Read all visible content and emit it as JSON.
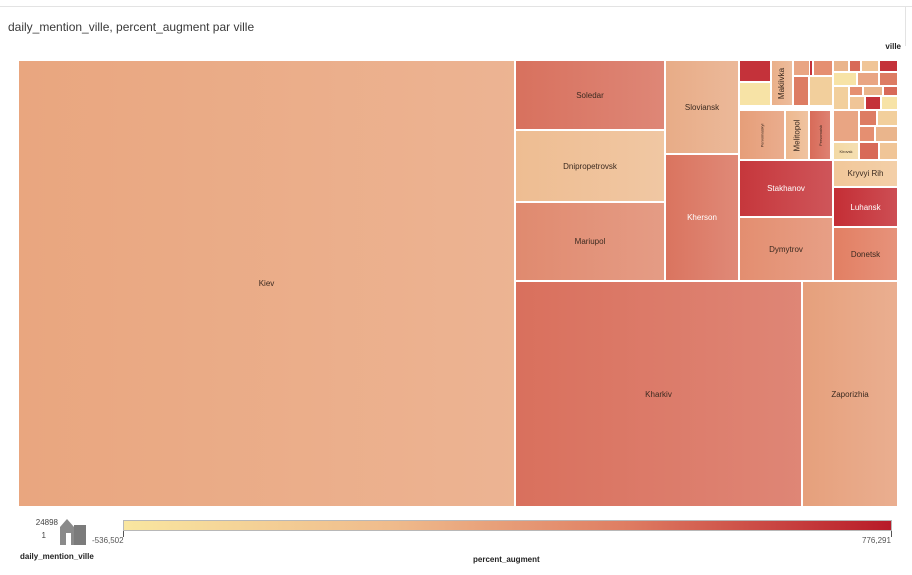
{
  "title": "daily_mention_ville, percent_augment par ville",
  "chart_data": {
    "type": "treemap",
    "group_label": "ville",
    "size_field": "daily_mention_ville",
    "color_field": "percent_augment",
    "color_range": [
      "#f9e6a0",
      "#b81a28"
    ],
    "color_min": -536502,
    "color_max": 776291,
    "cells": [
      {
        "name": "Kiev",
        "color": "#e9a67f"
      },
      {
        "name": "Kharkiv",
        "color": "#d9705d"
      },
      {
        "name": "Zaporizhia",
        "color": "#e6a07c"
      },
      {
        "name": "Soledar",
        "color": "#d8715e"
      },
      {
        "name": "Dnipropetrovsk",
        "color": "#eebd92"
      },
      {
        "name": "Mariupol",
        "color": "#e08a6f"
      },
      {
        "name": "Sloviansk",
        "color": "#e8ac87"
      },
      {
        "name": "Kherson",
        "color": "#da745f"
      },
      {
        "name": "Stakhanov",
        "color": "#c6373c"
      },
      {
        "name": "Dymytrov",
        "color": "#e38e70"
      },
      {
        "name": "Kryvyi Rih",
        "color": "#f1c799"
      },
      {
        "name": "Luhansk",
        "color": "#c42e35"
      },
      {
        "name": "Donetsk",
        "color": "#e27f63"
      },
      {
        "name": "Makiivka",
        "color": "#eab08a"
      },
      {
        "name": "Melitopol",
        "color": "#edb88f"
      },
      {
        "name": "Pervomaiskyi",
        "color": "#e69e79"
      },
      {
        "name": "Pervomaisk",
        "color": "#d86b59"
      },
      {
        "name": "Kirovsk",
        "color": "#f3d9a4"
      }
    ]
  },
  "legend": {
    "size_max": "24898",
    "size_min": "1",
    "size_title": "daily_mention_ville",
    "color_min_label": "-536,502",
    "color_max_label": "776,291",
    "color_title": "percent_augment"
  }
}
